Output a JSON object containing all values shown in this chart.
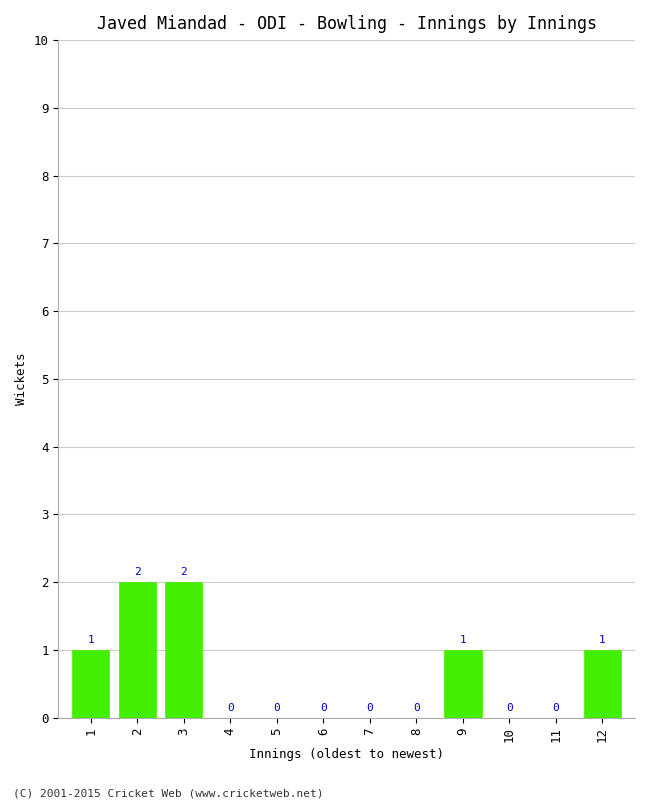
{
  "title": "Javed Miandad - ODI - Bowling - Innings by Innings",
  "xlabel": "Innings (oldest to newest)",
  "ylabel": "Wickets",
  "categories": [
    1,
    2,
    3,
    4,
    5,
    6,
    7,
    8,
    9,
    10,
    11,
    12
  ],
  "values": [
    1,
    2,
    2,
    0,
    0,
    0,
    0,
    0,
    1,
    0,
    0,
    1
  ],
  "bar_color": "#44ee00",
  "bar_edge_color": "#44ee00",
  "label_color": "#0000cc",
  "ylim": [
    0,
    10
  ],
  "yticks": [
    0,
    1,
    2,
    3,
    4,
    5,
    6,
    7,
    8,
    9,
    10
  ],
  "bg_color": "#ffffff",
  "plot_bg_color": "#ffffff",
  "grid_color": "#cccccc",
  "title_fontsize": 12,
  "axis_label_fontsize": 9,
  "tick_fontsize": 9,
  "label_fontsize": 8,
  "footer": "(C) 2001-2015 Cricket Web (www.cricketweb.net)",
  "footer_fontsize": 8
}
